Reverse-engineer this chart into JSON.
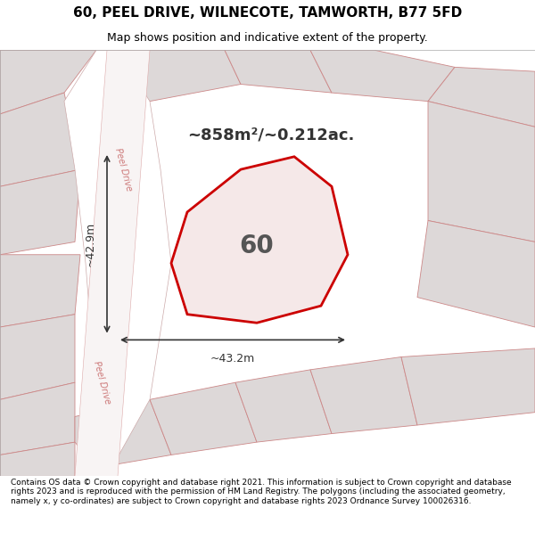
{
  "title": "60, PEEL DRIVE, WILNECOTE, TAMWORTH, B77 5FD",
  "subtitle": "Map shows position and indicative extent of the property.",
  "footer": "Contains OS data © Crown copyright and database right 2021. This information is subject to Crown copyright and database rights 2023 and is reproduced with the permission of HM Land Registry. The polygons (including the associated geometry, namely x, y co-ordinates) are subject to Crown copyright and database rights 2023 Ordnance Survey 100026316.",
  "bg_color": "#f5f5f5",
  "map_bg": "#f0eeee",
  "road_color": "#ffffff",
  "plot_outline_color": "#cc0000",
  "plot_fill_color": "#f5e0e0",
  "other_plot_color": "#e8d8d8",
  "other_plot_outline": "#cc8888",
  "dim_line_color": "#333333",
  "dim_text_color": "#333333",
  "road_label_color": "#cc6666",
  "area_text": "~858m²/~0.212ac.",
  "number_text": "60",
  "dim_h": "~43.2m",
  "dim_v": "~42.9m"
}
